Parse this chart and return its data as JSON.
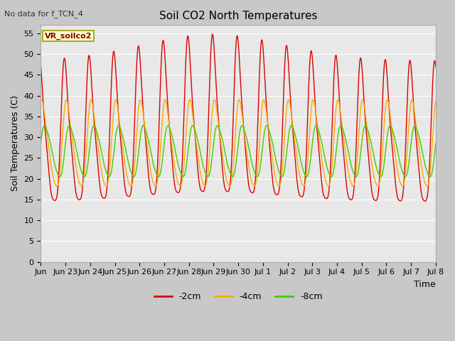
{
  "title": "Soil CO2 North Temperatures",
  "no_data_label": "No data for f_TCN_4",
  "ylabel": "Soil Temperatures (C)",
  "xlabel": "Time",
  "ylim": [
    0,
    57
  ],
  "yticks": [
    0,
    5,
    10,
    15,
    20,
    25,
    30,
    35,
    40,
    45,
    50,
    55
  ],
  "legend_box_label": "VR_soilco2",
  "fig_bg_color": "#c8c8c8",
  "plot_bg_color": "#e8e8e8",
  "grid_color": "#ffffff",
  "color_2cm": "#dd0000",
  "color_4cm": "#ffaa00",
  "color_8cm": "#44cc00",
  "legend_labels": [
    "-2cm",
    "-4cm",
    "-8cm"
  ],
  "title_fontsize": 11,
  "label_fontsize": 8,
  "ylabel_fontsize": 9
}
